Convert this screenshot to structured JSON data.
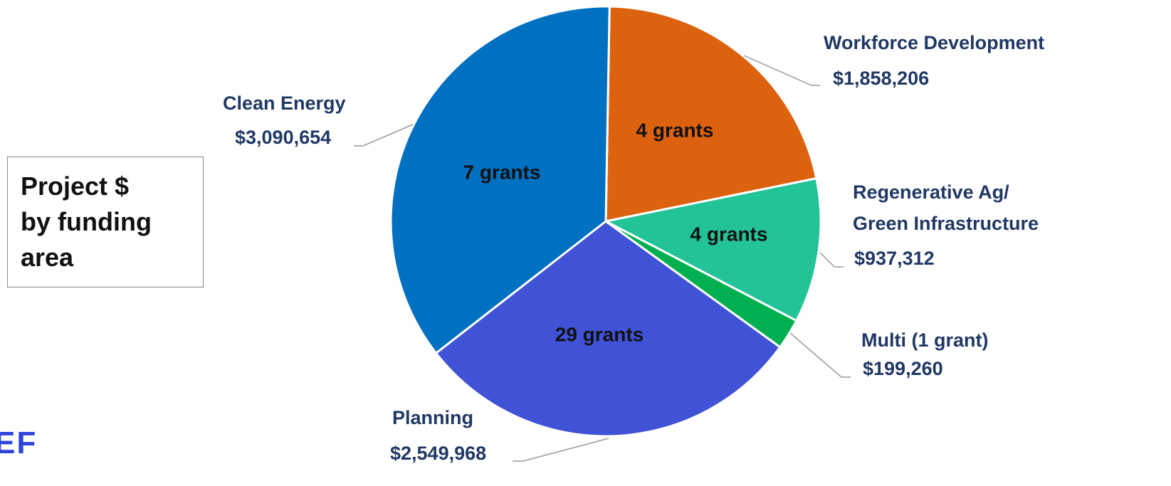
{
  "chart_data": {
    "type": "pie",
    "title": "Project $\nby funding\narea",
    "categories": [
      "Workforce Development",
      "Regenerative Ag/\nGreen Infrastructure",
      "Multi (1 grant)",
      "Planning",
      "Clean Energy"
    ],
    "values": [
      1858206,
      937312,
      199260,
      2549968,
      3090654
    ],
    "value_labels": [
      "$1,858,206",
      "$937,312",
      "$199,260",
      "$2,549,968",
      "$3,090,654"
    ],
    "slice_labels": [
      "4 grants",
      "4 grants",
      null,
      "29 grants",
      "7 grants"
    ],
    "colors": [
      "#dc620f",
      "#23c398",
      "#00b050",
      "#4052d6",
      "#0070c0"
    ],
    "logo": "EF"
  }
}
